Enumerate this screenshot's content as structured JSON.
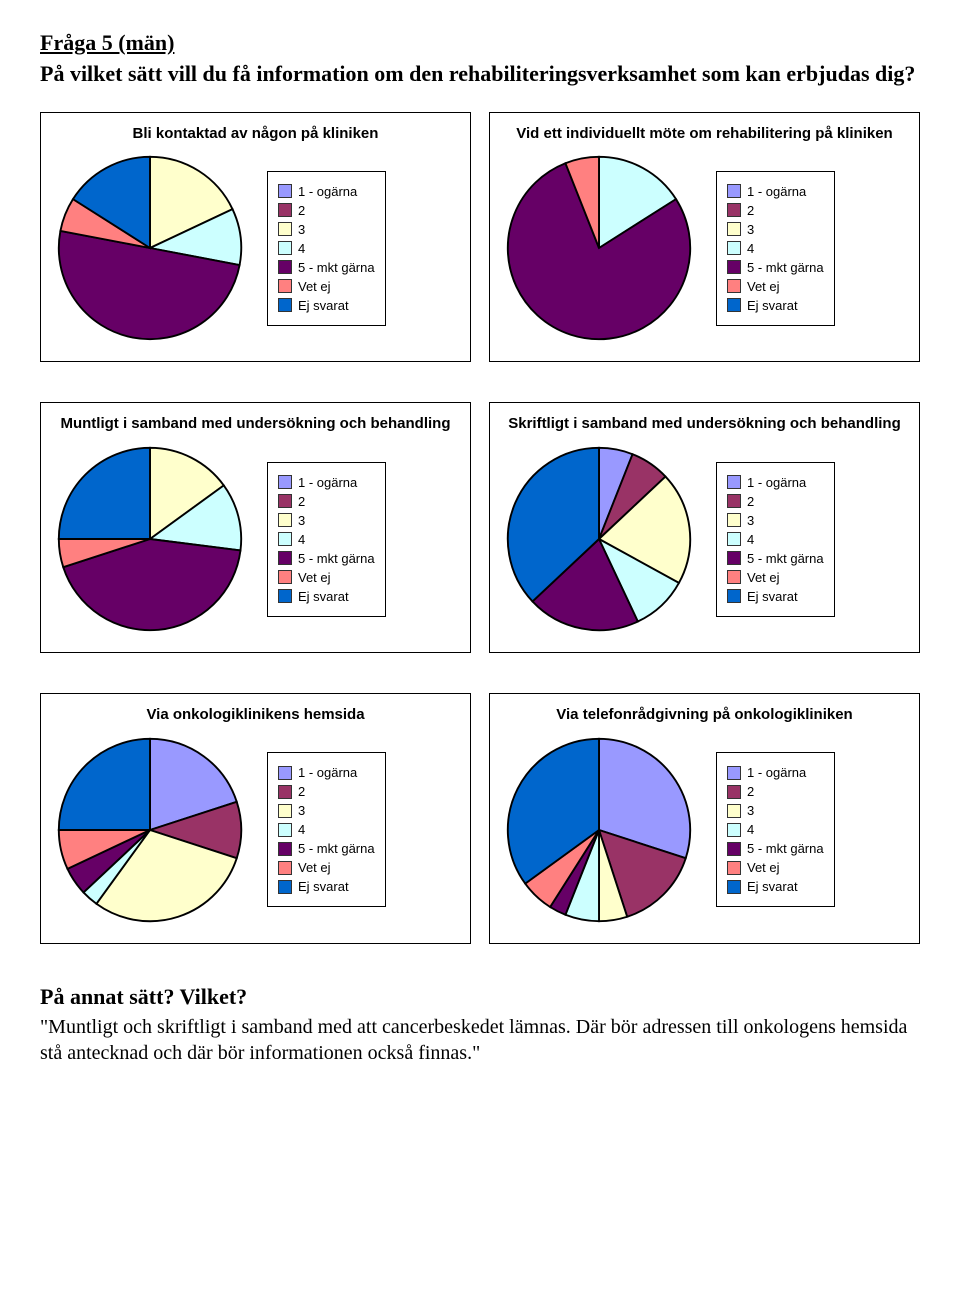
{
  "doc": {
    "heading": "Fråga 5 (män)",
    "subheading": "På vilket sätt vill du få information om den rehabiliteringsverksamhet som kan erbjudas dig?",
    "footer_heading": "På annat sätt? Vilket?",
    "footer_text": "\"Muntligt och skriftligt i samband med att cancerbeskedet lämnas. Där bör adressen till onkologens hemsida stå antecknad och där bör informationen också finnas.\""
  },
  "legend_labels": [
    "1 - ogärna",
    "2",
    "3",
    "4",
    "5 - mkt gärna",
    "Vet ej",
    "Ej svarat"
  ],
  "palette": {
    "1 - ogärna": "#9999ff",
    "2": "#993366",
    "3": "#ffffcc",
    "4": "#ccffff",
    "5 - mkt gärna": "#660066",
    "Vet ej": "#ff8080",
    "Ej svarat": "#0066cc"
  },
  "stroke": {
    "color": "#000000",
    "width": 1
  },
  "panels": [
    {
      "title": "Bli kontaktad av någon på kliniken",
      "type": "pie",
      "values": {
        "1 - ogärna": 0,
        "2": 0,
        "3": 18,
        "4": 10,
        "5 - mkt gärna": 50,
        "Vet ej": 6,
        "Ej svarat": 16
      }
    },
    {
      "title": "Vid ett individuellt möte om rehabilitering på kliniken",
      "type": "pie",
      "values": {
        "1 - ogärna": 0,
        "2": 0,
        "3": 0,
        "4": 16,
        "5 - mkt gärna": 78,
        "Vet ej": 6,
        "Ej svarat": 0
      }
    },
    {
      "title": "Muntligt i samband med undersökning och behandling",
      "type": "pie",
      "values": {
        "1 - ogärna": 0,
        "2": 0,
        "3": 15,
        "4": 12,
        "5 - mkt gärna": 43,
        "Vet ej": 5,
        "Ej svarat": 25
      }
    },
    {
      "title": "Skriftligt i samband med undersökning och behandling",
      "type": "pie",
      "values": {
        "1 - ogärna": 6,
        "2": 7,
        "3": 20,
        "4": 10,
        "5 - mkt gärna": 20,
        "Vet ej": 0,
        "Ej svarat": 37
      }
    },
    {
      "title": "Via onkologiklinikens hemsida",
      "type": "pie",
      "values": {
        "1 - ogärna": 20,
        "2": 10,
        "3": 30,
        "4": 3,
        "5 - mkt gärna": 5,
        "Vet ej": 7,
        "Ej svarat": 25
      }
    },
    {
      "title": "Via telefonrådgivning på onkologikliniken",
      "type": "pie",
      "values": {
        "1 - ogärna": 30,
        "2": 15,
        "3": 5,
        "4": 6,
        "5 - mkt gärna": 3,
        "Vet ej": 6,
        "Ej svarat": 35
      }
    }
  ]
}
